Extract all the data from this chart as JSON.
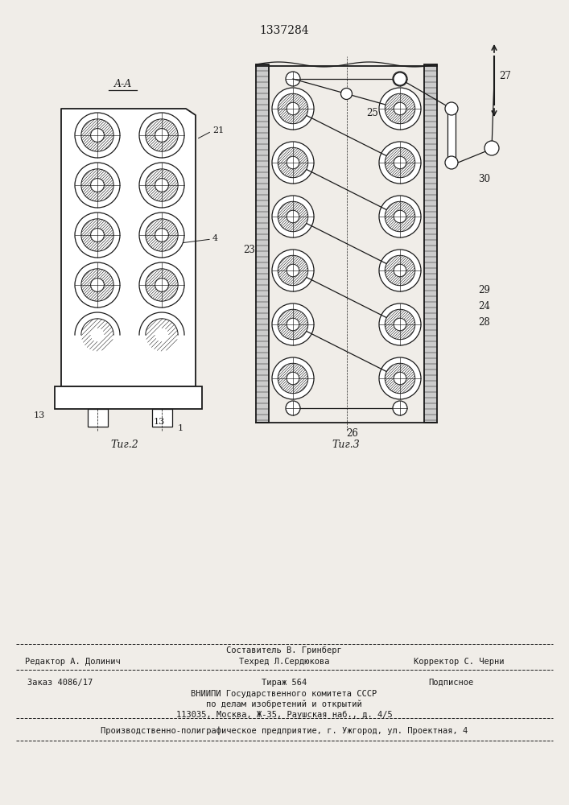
{
  "patent_number": "1337284",
  "bg_color": "#f0ede8",
  "lc": "#1a1a1a",
  "footer_line1": "Составитель В. Гринберг",
  "footer_col1": "Редактор А. Долинич",
  "footer_col2": "Техред Л.Сердюкова",
  "footer_col3": "Корректор С. Черни",
  "footer_order": "Заказ 4086/17",
  "footer_tirazh": "Тираж 564",
  "footer_podp": "Подписное",
  "footer_vnipi": "ВНИИПИ Государственного комитета СССР",
  "footer_po": "по делам изобретений и открытий",
  "footer_addr": "113035, Москва, Ж-35, Раушская наб., д. 4/5",
  "footer_prod": "Производственно-полиграфическое предприятие, г. Ужгород, ул. Проектная, 4",
  "fig2_label": "Τиг.2",
  "fig3_label": "Τиг.3",
  "section_label": "A-A"
}
